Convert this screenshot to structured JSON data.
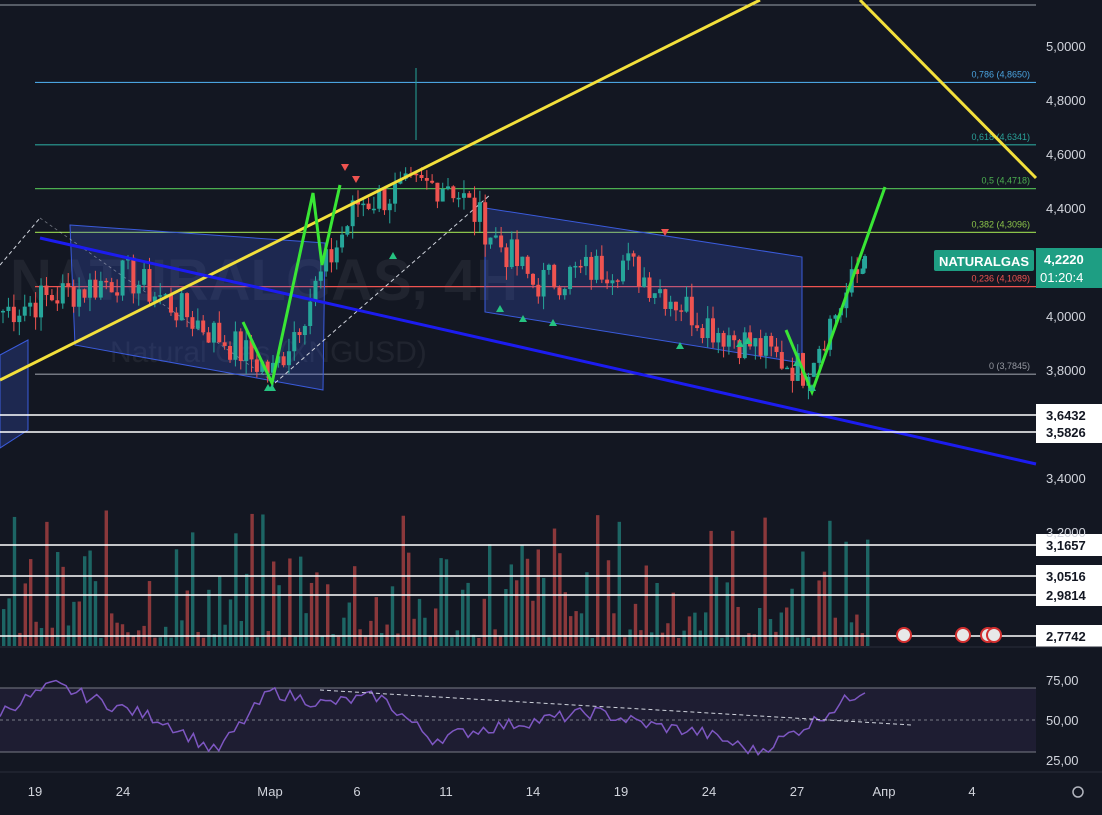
{
  "symbol": {
    "ticker": "NATURALGAS",
    "price": "4,2220",
    "countdown": "01:20:4",
    "watermark_main": "NATURALGAS, 4H",
    "watermark_sub": "Natural Gas (XNGUSD)"
  },
  "colors": {
    "background": "#131722",
    "up": "#26a69a",
    "down": "#ef5350",
    "trend_yellow": "#f3e03b",
    "trend_blue": "#1c1cf0",
    "zigzag_green": "#39e635",
    "channel": "#3a5bdc",
    "rsi": "#7e57c2",
    "price_label_bg": "#1e9e83"
  },
  "price_axis": {
    "ticks": [
      "5,0000",
      "4,8000",
      "4,6000",
      "4,4000",
      "4,2000",
      "4,0000",
      "3,8000",
      "3,4000",
      "3,2000"
    ]
  },
  "horizontal_levels": [
    {
      "label": "3,6432",
      "value": 3.6432
    },
    {
      "label": "3,5826",
      "value": 3.5826
    },
    {
      "label": "3,1657",
      "value": 3.1657
    },
    {
      "label": "3,0516",
      "value": 3.0516
    },
    {
      "label": "2,9814",
      "value": 2.9814
    },
    {
      "label": "2,7742",
      "value": 2.7742
    }
  ],
  "fibonacci": [
    {
      "label": "0,786 (4,8650)",
      "value": 4.865,
      "color": "#4aa3df"
    },
    {
      "label": "0,618 (4,6341)",
      "value": 4.6341,
      "color": "#2aa198"
    },
    {
      "label": "0,5 (4,4718)",
      "value": 4.4718,
      "color": "#4caf50"
    },
    {
      "label": "0,382 (4,3096)",
      "value": 4.3096,
      "color": "#8bc34a"
    },
    {
      "label": "0,236 (4,1089)",
      "value": 4.1089,
      "color": "#ef5350"
    },
    {
      "label": "0 (3,7845)",
      "value": 3.7845,
      "color": "#9598a1"
    }
  ],
  "rsi_axis": {
    "ticks": [
      "75,00",
      "50,00",
      "25,00"
    ]
  },
  "time_axis": {
    "ticks": [
      "19",
      "24",
      "Мар",
      "6",
      "11",
      "14",
      "19",
      "24",
      "27",
      "Апр",
      "4"
    ]
  },
  "chart_data": {
    "type": "candlestick",
    "timeframe": "4H",
    "x_labels": [
      "19",
      "24",
      "Мар",
      "6",
      "11",
      "14",
      "19",
      "24",
      "27",
      "Апр",
      "4"
    ],
    "ylim": [
      2.7,
      5.1
    ],
    "close_path": [
      {
        "label": "19",
        "value": 4.02
      },
      {
        "label": "24",
        "value": 4.15
      },
      {
        "label": "Мар",
        "value": 3.79
      },
      {
        "label": "6",
        "value": 4.42
      },
      {
        "label": "11",
        "value": 4.5
      },
      {
        "label": "14",
        "value": 4.12
      },
      {
        "label": "19",
        "value": 4.2
      },
      {
        "label": "24",
        "value": 3.96
      },
      {
        "label": "27",
        "value": 3.8
      },
      {
        "label": "last",
        "value": 4.222
      }
    ],
    "rsi_path": [
      55,
      72,
      60,
      50,
      30,
      68,
      60,
      65,
      38,
      45,
      50,
      55,
      47,
      42,
      30,
      48,
      70
    ],
    "rsi_levels": [
      70,
      50,
      30
    ]
  }
}
